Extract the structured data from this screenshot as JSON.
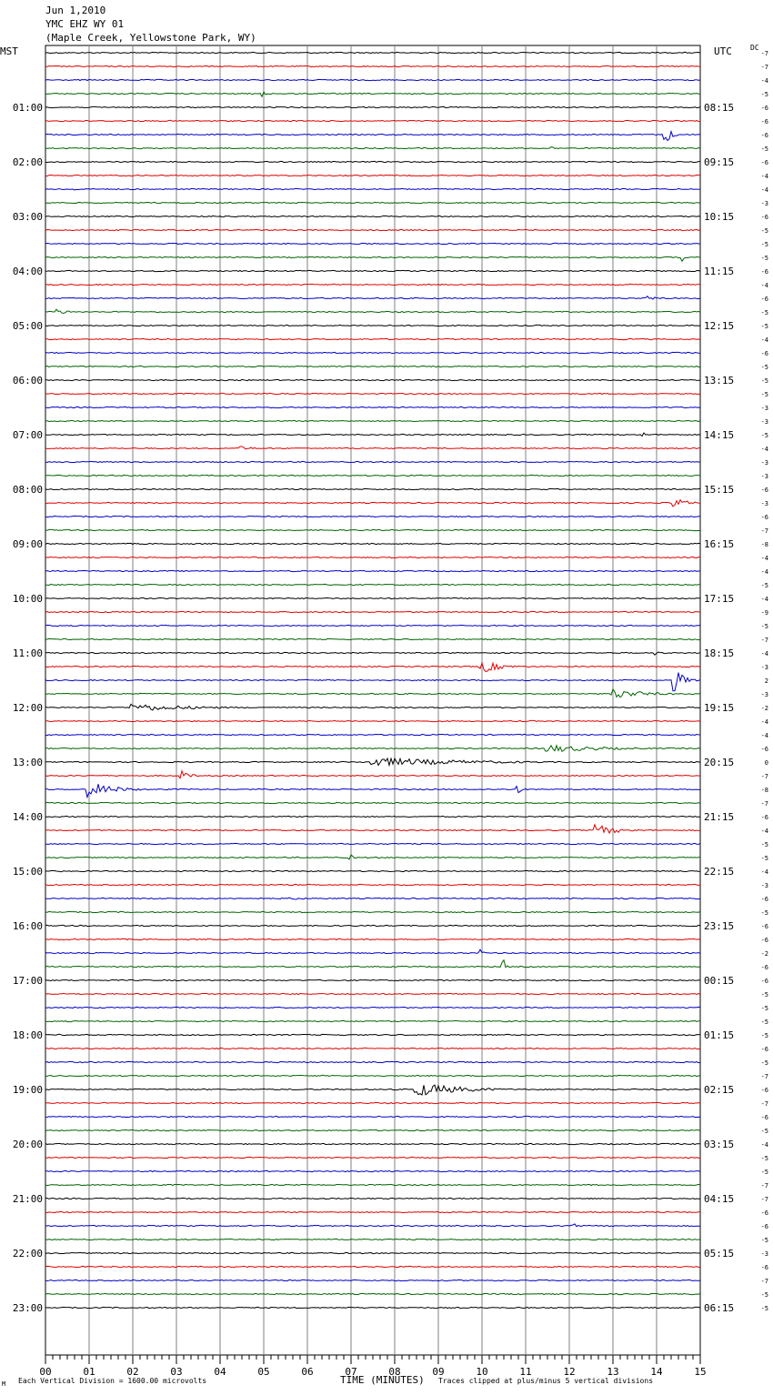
{
  "header": {
    "date": "Jun 1,2010",
    "station": "YMC EHZ WY 01",
    "location": "(Maple Creek, Yellowstone Park, WY)"
  },
  "left_zone": "MST",
  "right_zone": "UTC",
  "dc_label": "DC",
  "footer": {
    "scale_note": "Each Vertical Division = 1600.00 microvolts",
    "clip_note": "Traces clipped at plus/minus 5 vertical divisions",
    "logo_text": "M"
  },
  "colors": {
    "trace_cycle": [
      "#000000",
      "#e00000",
      "#0000c8",
      "#006400"
    ],
    "grid": "#808080"
  },
  "chart_data": {
    "type": "line",
    "title": "YMC EHZ WY 01",
    "xlabel": "TIME (MINUTES)",
    "ylabel": "",
    "xlim": [
      0,
      15
    ],
    "x_ticks": [
      "00",
      "01",
      "02",
      "03",
      "04",
      "05",
      "06",
      "07",
      "08",
      "09",
      "10",
      "11",
      "12",
      "13",
      "14",
      "15"
    ],
    "left_time_labels": [
      "01:00",
      "02:00",
      "03:00",
      "04:00",
      "05:00",
      "06:00",
      "07:00",
      "08:00",
      "09:00",
      "10:00",
      "11:00",
      "12:00",
      "13:00",
      "14:00",
      "15:00",
      "16:00",
      "17:00",
      "18:00",
      "19:00",
      "20:00",
      "21:00",
      "22:00",
      "23:00"
    ],
    "right_time_labels": [
      "08:15",
      "09:15",
      "10:15",
      "11:15",
      "12:15",
      "13:15",
      "14:15",
      "15:15",
      "16:15",
      "17:15",
      "18:15",
      "19:15",
      "20:15",
      "21:15",
      "22:15",
      "23:15",
      "00:15",
      "01:15",
      "02:15",
      "03:15",
      "04:15",
      "05:15",
      "06:15"
    ],
    "dc_offsets": [
      -7,
      -7,
      -4,
      -5,
      -6,
      -6,
      -6,
      -5,
      -6,
      -4,
      -4,
      -3,
      -6,
      -5,
      -5,
      -5,
      -6,
      -4,
      -6,
      -5,
      -5,
      -4,
      -6,
      -5,
      -5,
      -5,
      -3,
      -3,
      -5,
      -4,
      -3,
      -3,
      -6,
      -3,
      -6,
      -7,
      -8,
      -4,
      -4,
      -5,
      -4,
      -9,
      -5,
      -7,
      -4,
      -3,
      2,
      -3,
      -2,
      -4,
      -4,
      -6,
      0,
      -7,
      -8,
      -7,
      -6,
      -4,
      -5,
      -5,
      -4,
      -3,
      -6,
      -5,
      -6,
      -6,
      -2,
      -6,
      -6,
      -5,
      -5,
      -5,
      -5,
      -6,
      -5,
      -7,
      -6,
      -7,
      -6,
      -5,
      -4,
      -5,
      -5,
      -7,
      -7,
      -6,
      -6,
      -5,
      -3,
      -6,
      -7,
      -5,
      -5
    ],
    "trace_count": 93,
    "events": [
      {
        "trace": 3,
        "minute": 5.0,
        "amp": 0.25,
        "dur": 0.2
      },
      {
        "trace": 6,
        "minute": 14.2,
        "amp": 0.9,
        "dur": 0.35
      },
      {
        "trace": 7,
        "minute": 11.6,
        "amp": 0.2,
        "dur": 0.1
      },
      {
        "trace": 10,
        "minute": 0.7,
        "amp": 0.15,
        "dur": 0.1
      },
      {
        "trace": 15,
        "minute": 14.6,
        "amp": 0.3,
        "dur": 0.15
      },
      {
        "trace": 18,
        "minute": 13.8,
        "amp": 0.25,
        "dur": 0.5
      },
      {
        "trace": 19,
        "minute": 0.3,
        "amp": 0.25,
        "dur": 0.6
      },
      {
        "trace": 28,
        "minute": 13.7,
        "amp": 0.2,
        "dur": 0.15
      },
      {
        "trace": 29,
        "minute": 4.5,
        "amp": 0.15,
        "dur": 1.0
      },
      {
        "trace": 33,
        "minute": 14.4,
        "amp": 0.45,
        "dur": 0.8
      },
      {
        "trace": 44,
        "minute": 14.0,
        "amp": 0.2,
        "dur": 0.3
      },
      {
        "trace": 45,
        "minute": 10.0,
        "amp": 0.5,
        "dur": 1.2
      },
      {
        "trace": 46,
        "minute": 14.4,
        "amp": 1.0,
        "dur": 0.6
      },
      {
        "trace": 47,
        "minute": 13.0,
        "amp": 0.4,
        "dur": 2.0
      },
      {
        "trace": 48,
        "minute": 2.0,
        "amp": 0.3,
        "dur": 3.8
      },
      {
        "trace": 51,
        "minute": 11.5,
        "amp": 0.3,
        "dur": 3.5
      },
      {
        "trace": 52,
        "minute": 7.5,
        "amp": 0.35,
        "dur": 6.0
      },
      {
        "trace": 53,
        "minute": 3.1,
        "amp": 0.4,
        "dur": 0.6
      },
      {
        "trace": 54,
        "minute": 1.0,
        "amp": 0.6,
        "dur": 1.6
      },
      {
        "trace": 54,
        "minute": 10.8,
        "amp": 0.4,
        "dur": 0.3
      },
      {
        "trace": 57,
        "minute": 12.6,
        "amp": 0.45,
        "dur": 1.4
      },
      {
        "trace": 59,
        "minute": 7.0,
        "amp": 0.2,
        "dur": 0.2
      },
      {
        "trace": 62,
        "minute": 5.6,
        "amp": 0.15,
        "dur": 0.8
      },
      {
        "trace": 66,
        "minute": 10.0,
        "amp": 0.3,
        "dur": 0.1
      },
      {
        "trace": 67,
        "minute": 10.5,
        "amp": 0.5,
        "dur": 0.15
      },
      {
        "trace": 76,
        "minute": 8.5,
        "amp": 0.55,
        "dur": 2.8
      },
      {
        "trace": 86,
        "minute": 12.1,
        "amp": 0.2,
        "dur": 0.2
      }
    ]
  }
}
